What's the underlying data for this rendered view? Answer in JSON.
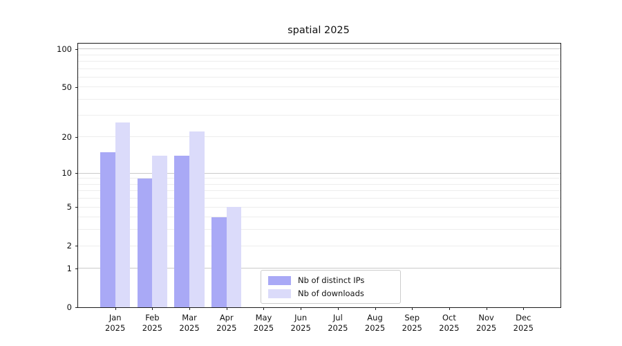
{
  "chart_data": {
    "type": "bar",
    "title": "spatial 2025",
    "categories": [
      "Jan",
      "Feb",
      "Mar",
      "Apr",
      "May",
      "Jun",
      "Jul",
      "Aug",
      "Sep",
      "Oct",
      "Nov",
      "Dec"
    ],
    "year_label": "2025",
    "series": [
      {
        "name": "Nb of distinct IPs",
        "color": "#a9a9f6",
        "values": [
          15,
          9,
          14,
          4,
          0,
          0,
          0,
          0,
          0,
          0,
          0,
          0
        ]
      },
      {
        "name": "Nb of downloads",
        "color": "#dbdbfa",
        "values": [
          26,
          14,
          22,
          5,
          0,
          0,
          0,
          0,
          0,
          0,
          0,
          0
        ]
      }
    ],
    "xlabel": "",
    "ylabel": "",
    "y_scale": "log10(1+v)",
    "ylim": [
      0,
      110
    ],
    "y_ticks": [
      100,
      50,
      20,
      10,
      5,
      2,
      1,
      0
    ],
    "y_major_gridlines": [
      1,
      10,
      100
    ],
    "y_minor_gridlines": [
      2,
      3,
      4,
      5,
      6,
      7,
      8,
      9,
      20,
      30,
      40,
      50,
      60,
      70,
      80,
      90
    ],
    "grid": "horizontal",
    "legend_position": "lower center-left inside plot"
  },
  "colors": {
    "background": "#ffffff",
    "spine": "#1a1a1a",
    "grid_major": "#c9c9c9",
    "grid_minor": "#ededed",
    "text": "#111111",
    "legend_border": "#cccccc"
  }
}
